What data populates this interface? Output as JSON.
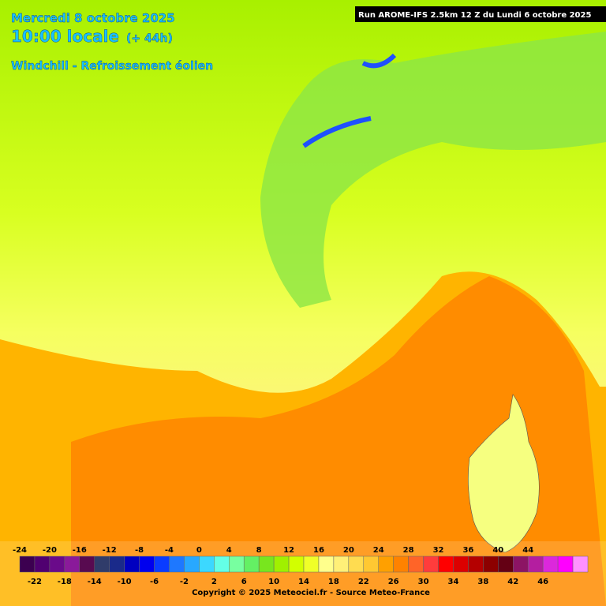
{
  "header": {
    "date": "Mercredi 8 octobre 2025",
    "time": "10:00 locale",
    "lead": "(+ 44h)",
    "product": "Windchill - Refroissement éolien"
  },
  "run": "Run AROME-IFS 2.5km 12 Z du Lundi 6 octobre 2025",
  "legend": {
    "values": [
      -24,
      -22,
      -20,
      -18,
      -16,
      -14,
      -12,
      -10,
      -8,
      -6,
      -4,
      -2,
      0,
      2,
      4,
      6,
      8,
      10,
      12,
      14,
      16,
      18,
      20,
      22,
      24,
      26,
      28,
      30,
      32,
      34,
      36,
      38,
      40,
      42,
      44,
      46
    ],
    "colors": [
      "#3c0050",
      "#500070",
      "#6a0a8a",
      "#8a1a9a",
      "#580a50",
      "#303c6a",
      "#1a2a8a",
      "#0000c0",
      "#0000ee",
      "#0a3cff",
      "#1e78ff",
      "#28a8ff",
      "#3cd8ff",
      "#64ffe6",
      "#78ffa0",
      "#64f064",
      "#78e61e",
      "#a0f000",
      "#d2ff00",
      "#f0ff28",
      "#ffff8c",
      "#fff078",
      "#ffdc50",
      "#ffc832",
      "#ffa000",
      "#ff8200",
      "#ff6428",
      "#ff3c3c",
      "#ff0000",
      "#dc0000",
      "#b40000",
      "#8c0000",
      "#640014",
      "#8c1464",
      "#b41ea0",
      "#dc28dc",
      "#ff00ff",
      "#ff90ff"
    ]
  },
  "copyright": "Copyright © 2025 Meteociel.fr - Source Meteo-France"
}
